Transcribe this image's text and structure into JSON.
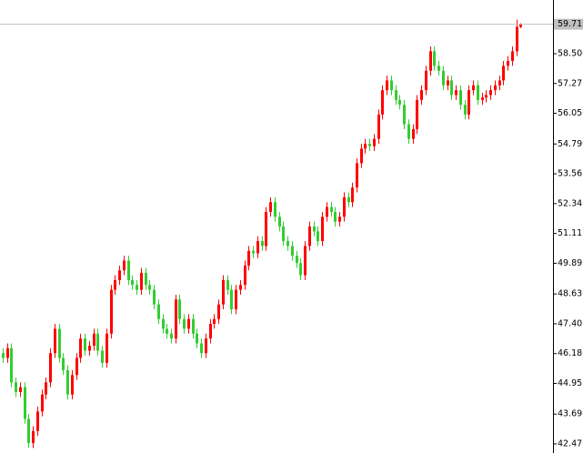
{
  "chart_data": {
    "type": "candlestick",
    "up_color": "#ff0000",
    "down_color": "#32cd32",
    "ylim": [
      42.096,
      60.705
    ],
    "yticks": [
      {
        "value": 42.47,
        "label": "42.470"
      },
      {
        "value": 43.695,
        "label": "43.695"
      },
      {
        "value": 44.955,
        "label": "44.955"
      },
      {
        "value": 46.18,
        "label": "46.180"
      },
      {
        "value": 47.405,
        "label": "47.405"
      },
      {
        "value": 48.63,
        "label": "48.630"
      },
      {
        "value": 49.89,
        "label": "49.890"
      },
      {
        "value": 51.115,
        "label": "51.115"
      },
      {
        "value": 52.34,
        "label": "52.340"
      },
      {
        "value": 53.565,
        "label": "53.565"
      },
      {
        "value": 54.79,
        "label": "54.790"
      },
      {
        "value": 56.05,
        "label": "56.050"
      },
      {
        "value": 57.275,
        "label": "57.275"
      },
      {
        "value": 58.5,
        "label": "58.500"
      }
    ],
    "last_price": {
      "value": 59.71,
      "label": "59.710"
    },
    "open": [
      46.2,
      46.0,
      46.4,
      45.0,
      44.6,
      44.8,
      43.5,
      42.5,
      43.0,
      43.8,
      44.5,
      45.0,
      46.2,
      47.2,
      46.0,
      45.5,
      44.5,
      45.3,
      46.0,
      46.8,
      46.3,
      46.5,
      47.0,
      46.3,
      45.8,
      47.0,
      48.8,
      49.2,
      49.6,
      50.0,
      49.2,
      49.0,
      48.8,
      49.5,
      49.0,
      48.8,
      48.2,
      47.6,
      47.2,
      47.0,
      46.8,
      48.4,
      47.6,
      47.2,
      47.6,
      47.0,
      46.6,
      46.2,
      46.8,
      47.4,
      47.6,
      48.2,
      49.2,
      48.8,
      48.0,
      48.8,
      49.0,
      49.8,
      50.4,
      50.3,
      50.8,
      50.6,
      52.0,
      52.4,
      51.8,
      51.4,
      50.8,
      50.6,
      50.2,
      49.9,
      49.4,
      50.6,
      51.4,
      51.2,
      50.8,
      51.8,
      52.2,
      52.0,
      51.6,
      51.8,
      52.6,
      52.4,
      53.0,
      54.0,
      54.6,
      54.8,
      54.7,
      55.0,
      56.0,
      57.0,
      57.4,
      57.0,
      56.6,
      56.4,
      55.6,
      55.0,
      55.4,
      56.6,
      57.0,
      57.8,
      58.6,
      58.0,
      57.8,
      57.2,
      57.4,
      56.8,
      57.0,
      56.4,
      56.0,
      57.0,
      57.2,
      56.6,
      56.7,
      56.8,
      57.0,
      57.2,
      57.4,
      58.0,
      58.2,
      58.6,
      59.6
    ],
    "high": [
      46.4,
      46.6,
      46.6,
      45.2,
      45.0,
      45.0,
      43.7,
      43.2,
      44.0,
      44.7,
      45.2,
      46.4,
      47.4,
      47.4,
      46.2,
      45.7,
      45.5,
      46.2,
      47.0,
      47.0,
      46.7,
      47.2,
      47.2,
      46.5,
      47.2,
      49.0,
      49.4,
      49.8,
      50.2,
      50.2,
      49.4,
      49.2,
      49.7,
      49.7,
      49.2,
      49.0,
      48.4,
      47.8,
      47.4,
      47.2,
      48.6,
      48.6,
      47.8,
      47.8,
      47.8,
      47.2,
      46.8,
      47.0,
      47.6,
      47.8,
      48.4,
      49.4,
      49.4,
      49.0,
      49.0,
      49.2,
      50.0,
      50.6,
      50.6,
      51.0,
      51.0,
      52.2,
      52.6,
      52.6,
      52.0,
      51.6,
      51.0,
      50.8,
      50.4,
      50.1,
      50.8,
      51.6,
      51.6,
      51.4,
      52.0,
      52.4,
      52.4,
      52.2,
      52.0,
      52.8,
      52.8,
      53.2,
      54.2,
      54.8,
      55.0,
      55.0,
      55.2,
      56.2,
      57.2,
      57.6,
      57.6,
      57.2,
      56.8,
      56.6,
      55.8,
      55.6,
      56.8,
      57.2,
      58.0,
      58.8,
      58.8,
      58.2,
      58.0,
      57.6,
      57.6,
      57.2,
      57.2,
      56.6,
      57.2,
      57.4,
      57.4,
      56.9,
      57.0,
      57.2,
      57.4,
      57.6,
      58.2,
      58.4,
      58.8,
      59.9,
      59.75
    ],
    "low": [
      45.8,
      45.8,
      44.8,
      44.4,
      44.4,
      43.3,
      42.3,
      42.3,
      42.8,
      43.6,
      44.3,
      44.8,
      46.0,
      45.8,
      45.3,
      44.3,
      44.3,
      45.1,
      45.8,
      46.1,
      46.1,
      46.3,
      46.1,
      45.6,
      45.6,
      46.8,
      48.6,
      49.0,
      49.4,
      49.0,
      48.8,
      48.6,
      48.6,
      48.8,
      48.6,
      48.0,
      47.4,
      47.0,
      46.8,
      46.6,
      46.6,
      47.4,
      47.0,
      47.0,
      46.8,
      46.4,
      46.0,
      46.0,
      46.6,
      47.2,
      47.4,
      48.0,
      48.6,
      47.8,
      47.8,
      48.6,
      48.8,
      49.6,
      50.1,
      50.1,
      50.4,
      50.4,
      51.8,
      51.6,
      51.2,
      50.6,
      50.4,
      50.0,
      49.7,
      49.2,
      49.2,
      50.4,
      51.0,
      50.6,
      50.6,
      51.6,
      51.8,
      51.4,
      51.4,
      51.6,
      52.2,
      52.2,
      52.8,
      53.8,
      54.4,
      54.5,
      54.5,
      54.8,
      55.8,
      56.8,
      56.8,
      56.4,
      56.2,
      55.4,
      54.8,
      54.8,
      55.2,
      56.4,
      56.8,
      57.6,
      57.8,
      57.6,
      57.0,
      57.0,
      56.6,
      56.6,
      56.2,
      55.8,
      55.8,
      56.8,
      56.4,
      56.4,
      56.5,
      56.6,
      56.8,
      57.0,
      57.2,
      57.8,
      58.0,
      58.4,
      59.55
    ],
    "close": [
      46.0,
      46.4,
      45.0,
      44.6,
      44.8,
      43.5,
      42.5,
      43.0,
      43.8,
      44.5,
      45.0,
      46.2,
      47.2,
      46.0,
      45.5,
      44.5,
      45.3,
      46.0,
      46.8,
      46.3,
      46.5,
      47.0,
      46.3,
      45.8,
      47.0,
      48.8,
      49.2,
      49.6,
      50.0,
      49.2,
      49.0,
      48.8,
      49.5,
      49.0,
      48.8,
      48.2,
      47.6,
      47.2,
      47.0,
      46.8,
      48.4,
      47.6,
      47.2,
      47.6,
      47.0,
      46.6,
      46.2,
      46.8,
      47.4,
      47.6,
      48.2,
      49.2,
      48.8,
      48.0,
      48.8,
      49.0,
      49.8,
      50.4,
      50.3,
      50.8,
      50.6,
      52.0,
      52.4,
      51.8,
      51.4,
      50.8,
      50.6,
      50.2,
      49.9,
      49.4,
      50.6,
      51.4,
      51.2,
      50.8,
      51.8,
      52.2,
      52.0,
      51.6,
      51.8,
      52.6,
      52.4,
      53.0,
      54.0,
      54.6,
      54.8,
      54.7,
      55.0,
      56.0,
      57.0,
      57.4,
      57.0,
      56.6,
      56.4,
      55.6,
      55.0,
      55.4,
      56.6,
      57.0,
      57.8,
      58.6,
      58.0,
      57.8,
      57.2,
      57.4,
      56.8,
      57.0,
      56.4,
      56.0,
      57.0,
      57.2,
      56.6,
      56.7,
      56.8,
      57.0,
      57.2,
      57.4,
      58.0,
      58.2,
      58.6,
      59.6,
      59.71
    ]
  }
}
